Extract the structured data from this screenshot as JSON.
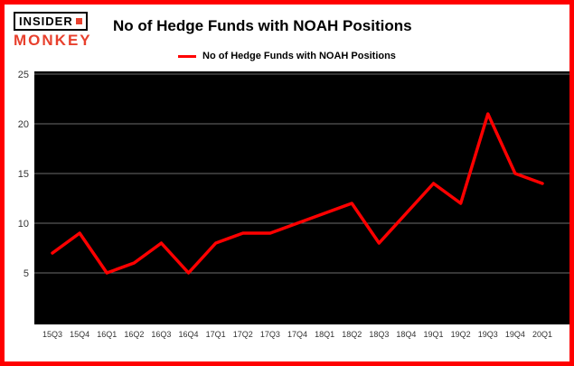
{
  "brand": {
    "line1": "INSIDER",
    "line2": "MONKEY"
  },
  "header": {
    "title": "No of Hedge Funds with NOAH Positions"
  },
  "legend": {
    "label": "No of Hedge Funds with NOAH Positions",
    "color": "#ff0000"
  },
  "colors": {
    "frame_border": "#ff0000",
    "background": "#ffffff",
    "plot_bg": "#000000",
    "grid": "#6b6b6b",
    "tick_text": "#333333",
    "logo_red": "#e8402d",
    "title_text": "#000000"
  },
  "chart_data": {
    "type": "line",
    "title": "No of Hedge Funds with NOAH Positions",
    "categories": [
      "15Q3",
      "15Q4",
      "16Q1",
      "16Q2",
      "16Q3",
      "16Q4",
      "17Q1",
      "17Q2",
      "17Q3",
      "17Q4",
      "18Q1",
      "18Q2",
      "18Q3",
      "18Q4",
      "19Q1",
      "19Q2",
      "19Q3",
      "19Q4",
      "20Q1"
    ],
    "values": [
      7,
      9,
      5,
      6,
      8,
      5,
      8,
      9,
      9,
      10,
      11,
      12,
      8,
      11,
      14,
      12,
      21,
      15,
      14
    ],
    "xlabel": "",
    "ylabel": "",
    "ylim": [
      0,
      25
    ],
    "yticks": [
      5,
      10,
      15,
      20,
      25
    ],
    "grid": true,
    "legend_position": "top",
    "line_color": "#ff0000",
    "plot_background": "#000000"
  }
}
